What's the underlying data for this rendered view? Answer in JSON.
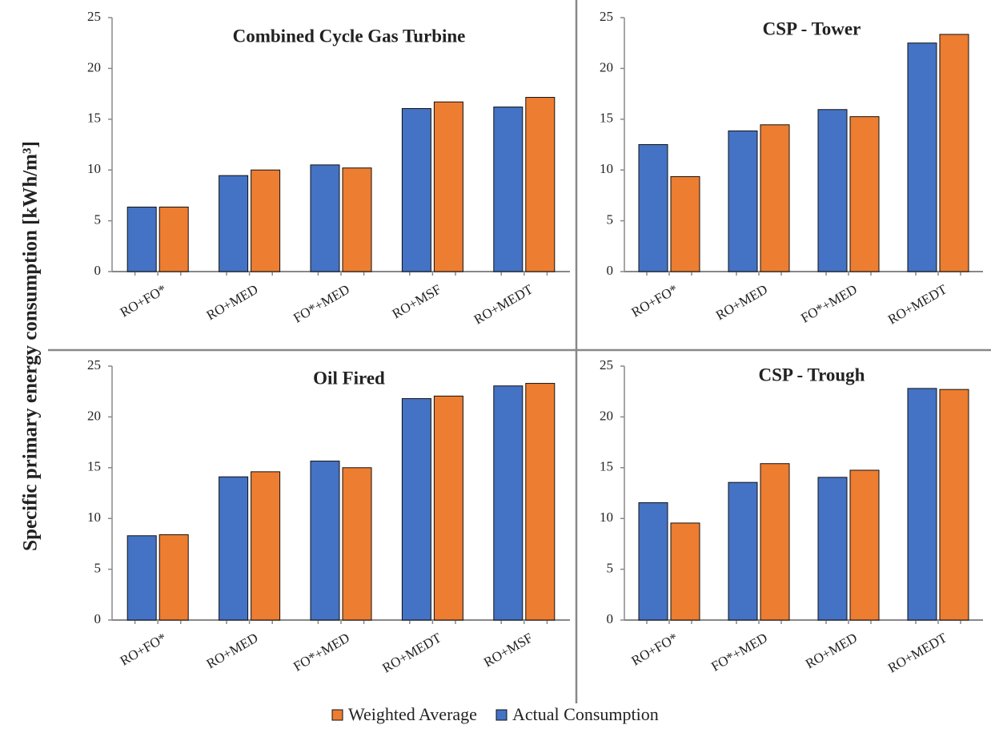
{
  "ylabel": "Specific primary energy consumption [kWh/m³]",
  "chart_data": [
    {
      "type": "bar",
      "title": "Combined Cycle Gas Turbine",
      "categories": [
        "RO+FO*",
        "RO+MED",
        "FO*+MED",
        "RO+MSF",
        "RO+MEDT"
      ],
      "series": [
        {
          "name": "Actual Consumption",
          "color": "#4472c4",
          "values": [
            6.35,
            9.45,
            10.5,
            16.05,
            16.2
          ]
        },
        {
          "name": "Weighted Average",
          "color": "#ed7d31",
          "values": [
            6.35,
            10.0,
            10.2,
            16.7,
            17.15
          ]
        }
      ],
      "ylim": [
        0,
        25
      ],
      "yticks": [
        0,
        5,
        10,
        15,
        20,
        25
      ]
    },
    {
      "type": "bar",
      "title": "CSP - Tower",
      "categories": [
        "RO+FO*",
        "RO+MED",
        "FO*+MED",
        "RO+MEDT"
      ],
      "series": [
        {
          "name": "Actual Consumption",
          "color": "#4472c4",
          "values": [
            12.5,
            13.85,
            15.95,
            22.5
          ]
        },
        {
          "name": "Weighted Average",
          "color": "#ed7d31",
          "values": [
            9.35,
            14.45,
            15.25,
            23.35
          ]
        }
      ],
      "ylim": [
        0,
        25
      ],
      "yticks": [
        0,
        5,
        10,
        15,
        20,
        25
      ]
    },
    {
      "type": "bar",
      "title": "Oil Fired",
      "categories": [
        "RO+FO*",
        "RO+MED",
        "FO*+MED",
        "RO+MEDT",
        "RO+MSF"
      ],
      "series": [
        {
          "name": "Actual Consumption",
          "color": "#4472c4",
          "values": [
            8.3,
            14.1,
            15.65,
            21.8,
            23.05
          ]
        },
        {
          "name": "Weighted Average",
          "color": "#ed7d31",
          "values": [
            8.4,
            14.6,
            15.0,
            22.05,
            23.3
          ]
        }
      ],
      "ylim": [
        0,
        25
      ],
      "yticks": [
        0,
        5,
        10,
        15,
        20,
        25
      ]
    },
    {
      "type": "bar",
      "title": "CSP - Trough",
      "categories": [
        "RO+FO*",
        "FO*+MED",
        "RO+MED",
        "RO+MEDT"
      ],
      "series": [
        {
          "name": "Actual Consumption",
          "color": "#4472c4",
          "values": [
            11.55,
            13.55,
            14.05,
            22.8
          ]
        },
        {
          "name": "Weighted Average",
          "color": "#ed7d31",
          "values": [
            9.55,
            15.4,
            14.75,
            22.7
          ]
        }
      ],
      "ylim": [
        0,
        25
      ],
      "yticks": [
        0,
        5,
        10,
        15,
        20,
        25
      ]
    }
  ]
}
